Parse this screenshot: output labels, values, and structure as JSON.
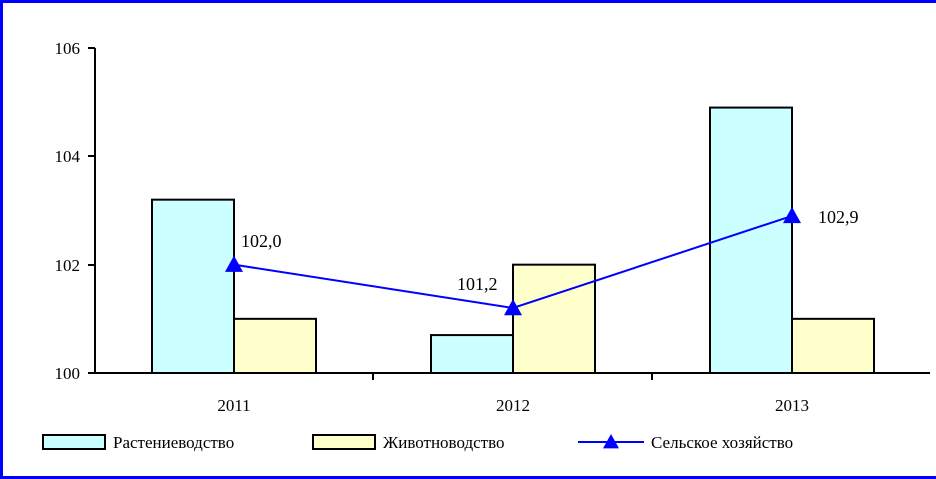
{
  "chart_data": {
    "type": "bar",
    "categories": [
      "2011",
      "2012",
      "2013"
    ],
    "series": [
      {
        "name": "Растениеводство",
        "kind": "bar",
        "color": "#ccffff",
        "values": [
          103.2,
          100.7,
          104.9
        ]
      },
      {
        "name": "Животноводство",
        "kind": "bar",
        "color": "#ffffcc",
        "values": [
          101.0,
          102.0,
          101.0
        ]
      },
      {
        "name": "Сельское хозяйство",
        "kind": "line",
        "color": "#0000ff",
        "marker": "triangle",
        "values": [
          102.0,
          101.2,
          102.9
        ]
      }
    ],
    "data_labels": [
      "102,0",
      "101,2",
      "102,9"
    ],
    "yticks": [
      "100",
      "102",
      "104",
      "106"
    ],
    "ylim": [
      100,
      106
    ],
    "title": "",
    "xlabel": "",
    "ylabel": "",
    "grid": false,
    "legend": "bottom"
  },
  "colors": {
    "border": "#0000ff"
  }
}
